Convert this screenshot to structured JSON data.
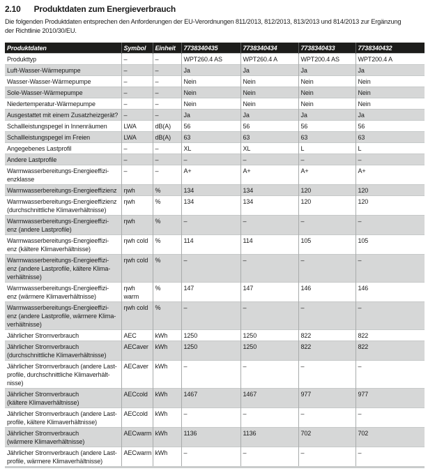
{
  "section": {
    "number": "2.10",
    "title": "Produktdaten zum Energieverbrauch"
  },
  "intro": "Die folgenden Produktdaten entsprechen den Anforderungen der EU-Verordnungen 811/2013, 812/2013, 813/2013 und 814/2013 zur Ergänzung\nder Richtlinie 2010/30/EU.",
  "colors": {
    "header_bg": "#1d1d1b",
    "header_text": "#ffffff",
    "row_shaded": "#d6d7d7",
    "border_vertical": "#a8abab",
    "border_horizontal": "#c6c9c9"
  },
  "table": {
    "columns": [
      "Produktdaten",
      "Symbol",
      "Einheit",
      "7738340435",
      "7738340434",
      "7738340433",
      "7738340432"
    ],
    "rows": [
      {
        "label": "Produkttyp",
        "symbol": "–",
        "unit": "–",
        "values": [
          "WPT260.4 AS",
          "WPT260.4 A",
          "WPT200.4 AS",
          "WPT200.4 A"
        ],
        "shaded": false
      },
      {
        "label": "Luft-Wasser-Wärmepumpe",
        "symbol": "–",
        "unit": "–",
        "values": [
          "Ja",
          "Ja",
          "Ja",
          "Ja"
        ],
        "shaded": true
      },
      {
        "label": "Wasser-Wasser-Wärmepumpe",
        "symbol": "–",
        "unit": "–",
        "values": [
          "Nein",
          "Nein",
          "Nein",
          "Nein"
        ],
        "shaded": false
      },
      {
        "label": "Sole-Wasser-Wärmepumpe",
        "symbol": "–",
        "unit": "–",
        "values": [
          "Nein",
          "Nein",
          "Nein",
          "Nein"
        ],
        "shaded": true
      },
      {
        "label": "Niedertemperatur-Wärmepumpe",
        "symbol": "–",
        "unit": "–",
        "values": [
          "Nein",
          "Nein",
          "Nein",
          "Nein"
        ],
        "shaded": false
      },
      {
        "label": "Ausgestattet mit einem Zusatzheizgerät?",
        "symbol": "–",
        "unit": "–",
        "values": [
          "Ja",
          "Ja",
          "Ja",
          "Ja"
        ],
        "shaded": true
      },
      {
        "label": "Schallleistungspegel in Innenräumen",
        "symbol": "LWA",
        "unit": "dB(A)",
        "values": [
          "56",
          "56",
          "56",
          "56"
        ],
        "shaded": false
      },
      {
        "label": "Schallleistungspegel im Freien",
        "symbol": "LWA",
        "unit": "dB(A)",
        "values": [
          "63",
          "63",
          "63",
          "63"
        ],
        "shaded": true
      },
      {
        "label": "Angegebenes Lastprofil",
        "symbol": "–",
        "unit": "–",
        "values": [
          "XL",
          "XL",
          "L",
          "L"
        ],
        "shaded": false
      },
      {
        "label": "Andere Lastprofile",
        "symbol": "–",
        "unit": "–",
        "values": [
          "–",
          "–",
          "–",
          "–"
        ],
        "shaded": true
      },
      {
        "label": "Warmwasserbereitungs-Energieeffizi-\nenzklasse",
        "symbol": "–",
        "unit": "–",
        "values": [
          "A+",
          "A+",
          "A+",
          "A+"
        ],
        "shaded": false
      },
      {
        "label": "Warmwasserbereitungs-Energieeffizienz",
        "symbol": "ηwh",
        "unit": "%",
        "values": [
          "134",
          "134",
          "120",
          "120"
        ],
        "shaded": true
      },
      {
        "label": "Warmwasserbereitungs-Energieeffizienz\n(durchschnittliche Klimaverhältnisse)",
        "symbol": "ηwh",
        "unit": "%",
        "values": [
          "134",
          "134",
          "120",
          "120"
        ],
        "shaded": false
      },
      {
        "label": "Warmwasserbereitungs-Energieeffizi-\nenz (andere Lastprofile)",
        "symbol": "ηwh",
        "unit": "%",
        "values": [
          "–",
          "–",
          "–",
          "–"
        ],
        "shaded": true
      },
      {
        "label": "Warmwasserbereitungs-Energieeffizi-\nenz (kältere Klimaverhältnisse)",
        "symbol": "ηwh cold",
        "unit": "%",
        "values": [
          "114",
          "114",
          "105",
          "105"
        ],
        "shaded": false
      },
      {
        "label": "Warmwasserbereitungs-Energieeffizi-\nenz (andere Lastprofile, kältere Klima-\nverhältnisse)",
        "symbol": "ηwh cold",
        "unit": "%",
        "values": [
          "–",
          "–",
          "–",
          "–"
        ],
        "shaded": true
      },
      {
        "label": "Warmwasserbereitungs-Energieeffizi-\nenz (wärmere Klimaverhältnisse)",
        "symbol": "ηwh warm",
        "unit": "%",
        "values": [
          "147",
          "147",
          "146",
          "146"
        ],
        "shaded": false
      },
      {
        "label": "Warmwasserbereitungs-Energieeffizi-\nenz (andere Lastprofile, wärmere Klima-\nverhältnisse)",
        "symbol": "ηwh cold",
        "unit": "%",
        "values": [
          "–",
          "–",
          "–",
          "–"
        ],
        "shaded": true
      },
      {
        "label": "Jährlicher Stromverbrauch",
        "symbol": "AEC",
        "unit": "kWh",
        "values": [
          "1250",
          "1250",
          "822",
          "822"
        ],
        "shaded": false
      },
      {
        "label": "Jährlicher Stromverbrauch\n(durchschnittliche Klimaverhältnisse)",
        "symbol": "AECaver",
        "unit": "kWh",
        "values": [
          "1250",
          "1250",
          "822",
          "822"
        ],
        "shaded": true
      },
      {
        "label": "Jährlicher Stromverbrauch (andere Last-\nprofile, durchschnittliche Klimaverhält-\nnisse)",
        "symbol": "AECaver",
        "unit": "kWh",
        "values": [
          "–",
          "–",
          "–",
          "–"
        ],
        "shaded": false
      },
      {
        "label": "Jährlicher Stromverbrauch\n(kältere Klimaverhältnisse)",
        "symbol": "AECcold",
        "unit": "kWh",
        "values": [
          "1467",
          "1467",
          "977",
          "977"
        ],
        "shaded": true
      },
      {
        "label": "Jährlicher Stromverbrauch (andere Last-\nprofile, kältere Klimaverhältnisse)",
        "symbol": "AECcold",
        "unit": "kWh",
        "values": [
          "–",
          "–",
          "–",
          "–"
        ],
        "shaded": false
      },
      {
        "label": "Jährlicher Stromverbrauch\n(wärmere Klimaverhältnisse)",
        "symbol": "AECwarm",
        "unit": "kWh",
        "values": [
          "1136",
          "1136",
          "702",
          "702"
        ],
        "shaded": true
      },
      {
        "label": "Jährlicher Stromverbrauch (andere Last-\nprofile, wärmere Klimaverhältnisse)",
        "symbol": "AECwarm",
        "unit": "kWh",
        "values": [
          "–",
          "–",
          "–",
          "–"
        ],
        "shaded": false
      }
    ]
  }
}
